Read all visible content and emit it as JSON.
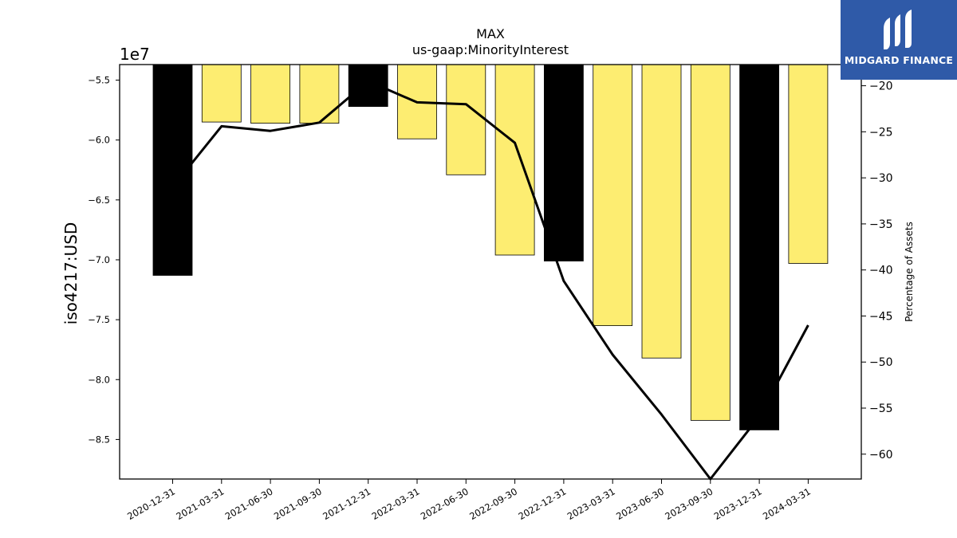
{
  "brand": {
    "name": "MIDGARD FINANCE",
    "color": "#2f5aa8"
  },
  "chart_data": {
    "type": "bar",
    "title": "MAX",
    "subtitle": "us-gaap:MinorityInterest",
    "ylabel": "iso4217:USD",
    "y2label": "Percentage of Assets",
    "offset_label": "1e7",
    "categories": [
      "2020-12-31",
      "2021-03-31",
      "2021-06-30",
      "2021-09-30",
      "2021-12-31",
      "2022-03-31",
      "2022-06-30",
      "2022-09-30",
      "2022-12-31",
      "2023-03-31",
      "2023-06-30",
      "2023-09-30",
      "2023-12-31",
      "2024-03-31"
    ],
    "series": [
      {
        "values": [
          -71.3,
          -58.5,
          -58.6,
          -58.6,
          -57.2,
          -59.9,
          -62.9,
          -69.6,
          -70.1,
          -75.5,
          -78.2,
          -83.4,
          -84.2,
          -70.3
        ],
        "colors": [
          "#000000",
          "#fded71",
          "#fded71",
          "#fded71",
          "#000000",
          "#fded71",
          "#fded71",
          "#fded71",
          "#000000",
          "#fded71",
          "#fded71",
          "#fded71",
          "#000000",
          "#fded71"
        ]
      },
      {
        "values": [
          -31.0,
          -24.4,
          -24.9,
          -24.0,
          -19.5,
          -21.8,
          -22.0,
          -26.2,
          -41.2,
          -49.2,
          -55.7,
          -62.7,
          -55.9,
          -46.0
        ],
        "color": "#000000",
        "axis": "right"
      }
    ],
    "yticks": [
      "−5.5",
      "−6.0",
      "−6.5",
      "−7.0",
      "−7.5",
      "−8.0",
      "−8.5"
    ],
    "ytick_values": [
      -55,
      -60,
      -65,
      -70,
      -75,
      -80,
      -85
    ],
    "y2ticks": [
      "−20",
      "−25",
      "−30",
      "−35",
      "−40",
      "−45",
      "−50",
      "−55",
      "−60"
    ],
    "y2tick_values": [
      -20,
      -25,
      -30,
      -35,
      -40,
      -45,
      -50,
      -55,
      -60
    ],
    "ylim": [
      -88.3,
      -53.7
    ],
    "y2lim": [
      -62.7,
      -17.7
    ],
    "grid": false,
    "legend": "none"
  }
}
